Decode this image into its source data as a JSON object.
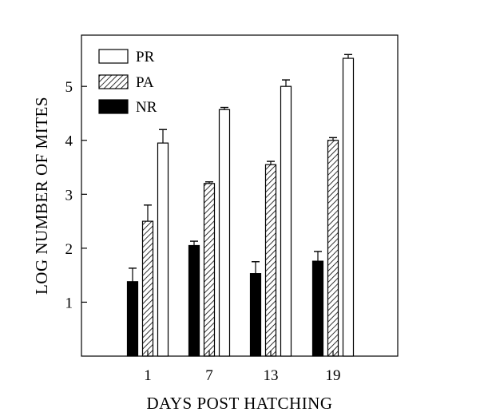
{
  "chart_data": {
    "type": "bar",
    "categories": [
      "1",
      "7",
      "13",
      "19"
    ],
    "series": [
      {
        "name": "NR",
        "fill": "solid",
        "values": [
          1.38,
          2.05,
          1.53,
          1.76
        ],
        "errors": [
          0.25,
          0.08,
          0.22,
          0.18
        ]
      },
      {
        "name": "PA",
        "fill": "hatch",
        "values": [
          2.5,
          3.2,
          3.55,
          4.0
        ],
        "errors": [
          0.3,
          0.03,
          0.06,
          0.05
        ]
      },
      {
        "name": "PR",
        "fill": "open",
        "values": [
          3.95,
          4.57,
          5.0,
          5.52
        ],
        "errors": [
          0.25,
          0.04,
          0.12,
          0.07
        ]
      }
    ],
    "legend_order": [
      "PR",
      "PA",
      "NR"
    ],
    "xlabel": "DAYS POST HATCHING",
    "ylabel": "LOG NUMBER OF MITES",
    "yticks": [
      1,
      2,
      3,
      4,
      5
    ],
    "ylim": [
      0,
      5.95
    ],
    "legend_position": "top-left",
    "grid": false,
    "colors": {
      "ink": "#000000",
      "paper": "#ffffff"
    }
  }
}
